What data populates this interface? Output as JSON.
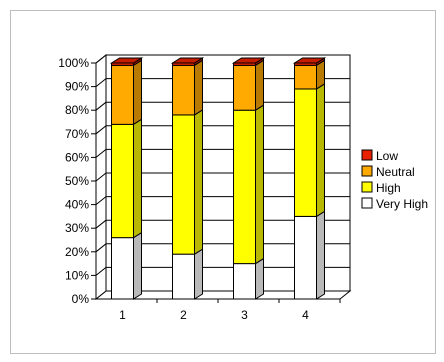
{
  "chart_data": {
    "type": "bar",
    "stacked": true,
    "style": "3d",
    "categories": [
      "1",
      "2",
      "3",
      "4"
    ],
    "series": [
      {
        "name": "Very High",
        "color": "#ffffff",
        "values": [
          26,
          19,
          15,
          35
        ]
      },
      {
        "name": "High",
        "color": "#ffff00",
        "values": [
          48,
          59,
          65,
          54
        ]
      },
      {
        "name": "Neutral",
        "color": "#ffaa00",
        "values": [
          25,
          21,
          19,
          10
        ]
      },
      {
        "name": "Low",
        "color": "#e82200",
        "values": [
          1,
          1,
          1,
          1
        ]
      }
    ],
    "y_ticks": [
      "0%",
      "10%",
      "20%",
      "30%",
      "40%",
      "50%",
      "60%",
      "70%",
      "80%",
      "90%",
      "100%"
    ],
    "ylim": [
      0,
      100
    ],
    "grid": true,
    "legend_position": "right",
    "legend_order": [
      "Low",
      "Neutral",
      "High",
      "Very High"
    ],
    "title": "",
    "xlabel": "",
    "ylabel": ""
  }
}
